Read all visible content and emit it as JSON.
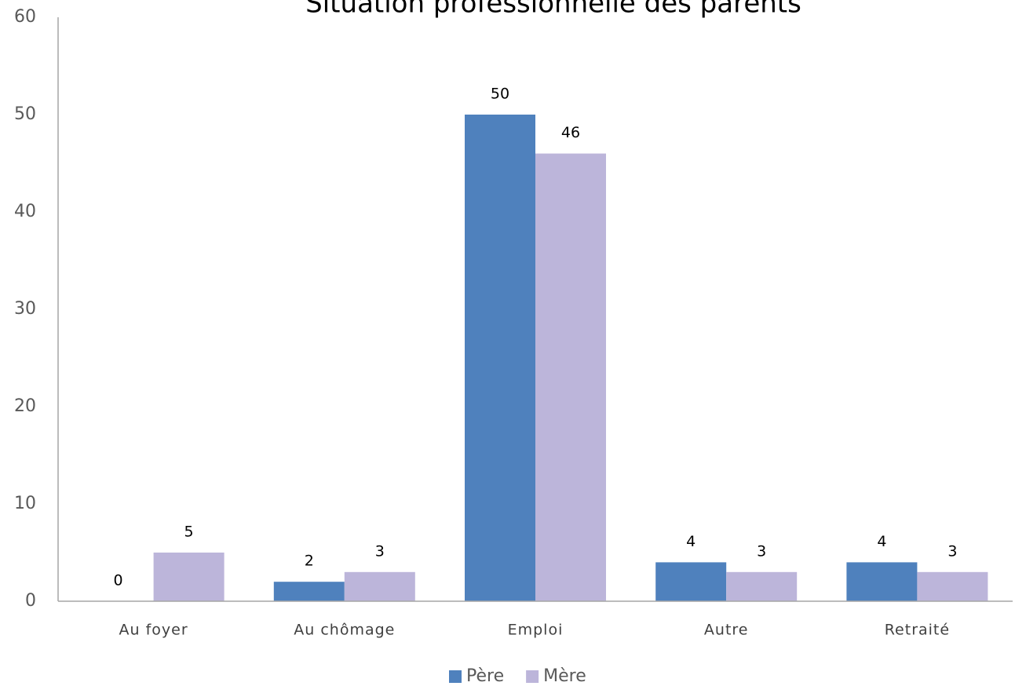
{
  "chart_data": {
    "type": "bar",
    "title": "Situation professionnelle des parents",
    "categories": [
      "Au foyer",
      "Au chômage",
      "Emploi",
      "Autre",
      "Retraité"
    ],
    "series": [
      {
        "name": "Père",
        "color": "#4f81bd",
        "values": [
          0,
          2,
          50,
          4,
          4
        ]
      },
      {
        "name": "Mère",
        "color": "#bcb5da",
        "values": [
          5,
          3,
          46,
          3,
          3
        ]
      }
    ],
    "ylim": [
      0,
      60
    ],
    "yticks": [
      0,
      10,
      20,
      30,
      40,
      50,
      60
    ],
    "grid": false,
    "legend": "bottom"
  }
}
